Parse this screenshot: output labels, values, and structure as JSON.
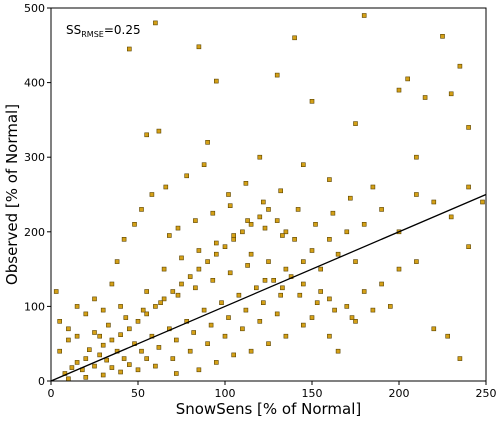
{
  "chart_data": {
    "type": "scatter",
    "title": "",
    "xlabel": "SnowSens [% of Normal]",
    "ylabel": "Observed [% of Normal]",
    "xlim": [
      0,
      250
    ],
    "ylim": [
      0,
      500
    ],
    "xticks": [
      "0",
      "50",
      "100",
      "150",
      "200",
      "250"
    ],
    "yticks": [
      "0",
      "100",
      "200",
      "300",
      "400",
      "500"
    ],
    "grid": false,
    "legend": "none",
    "annotation": {
      "prefix": "SS",
      "subscript": "RMSE",
      "suffix": "=0.25"
    },
    "marker_color": "#d4a017",
    "marker_edge_color": "#5a4300",
    "regression_line": {
      "x": [
        0,
        250
      ],
      "y": [
        0,
        250
      ],
      "color": "#000000"
    },
    "series": [
      {
        "values": [
          [
            8,
            10
          ],
          [
            12,
            18
          ],
          [
            15,
            25
          ],
          [
            18,
            15
          ],
          [
            20,
            30
          ],
          [
            22,
            42
          ],
          [
            25,
            20
          ],
          [
            28,
            35
          ],
          [
            30,
            48
          ],
          [
            32,
            28
          ],
          [
            35,
            55
          ],
          [
            38,
            40
          ],
          [
            40,
            62
          ],
          [
            42,
            30
          ],
          [
            45,
            70
          ],
          [
            48,
            50
          ],
          [
            50,
            80
          ],
          [
            52,
            40
          ],
          [
            55,
            90
          ],
          [
            58,
            60
          ],
          [
            60,
            100
          ],
          [
            62,
            45
          ],
          [
            65,
            110
          ],
          [
            68,
            70
          ],
          [
            70,
            120
          ],
          [
            72,
            55
          ],
          [
            75,
            130
          ],
          [
            78,
            80
          ],
          [
            80,
            140
          ],
          [
            82,
            65
          ],
          [
            85,
            150
          ],
          [
            88,
            95
          ],
          [
            90,
            160
          ],
          [
            92,
            75
          ],
          [
            95,
            170
          ],
          [
            98,
            105
          ],
          [
            100,
            180
          ],
          [
            102,
            85
          ],
          [
            105,
            190
          ],
          [
            108,
            115
          ],
          [
            110,
            200
          ],
          [
            112,
            95
          ],
          [
            115,
            210
          ],
          [
            118,
            125
          ],
          [
            120,
            220
          ],
          [
            122,
            105
          ],
          [
            125,
            230
          ],
          [
            128,
            135
          ],
          [
            130,
            215
          ],
          [
            132,
            115
          ],
          [
            135,
            200
          ],
          [
            138,
            140
          ],
          [
            140,
            190
          ],
          [
            145,
            160
          ],
          [
            150,
            175
          ],
          [
            155,
            150
          ],
          [
            160,
            190
          ],
          [
            165,
            170
          ],
          [
            170,
            200
          ],
          [
            175,
            160
          ],
          [
            180,
            210
          ],
          [
            190,
            230
          ],
          [
            200,
            200
          ],
          [
            210,
            250
          ],
          [
            220,
            240
          ],
          [
            230,
            220
          ],
          [
            240,
            260
          ],
          [
            248,
            240
          ],
          [
            45,
            445
          ],
          [
            60,
            480
          ],
          [
            85,
            448
          ],
          [
            140,
            460
          ],
          [
            180,
            490
          ],
          [
            225,
            462
          ],
          [
            235,
            422
          ],
          [
            240,
            340
          ],
          [
            130,
            410
          ],
          [
            95,
            402
          ],
          [
            150,
            375
          ],
          [
            175,
            345
          ],
          [
            200,
            390
          ],
          [
            205,
            405
          ],
          [
            215,
            380
          ],
          [
            230,
            385
          ],
          [
            55,
            330
          ],
          [
            62,
            335
          ],
          [
            90,
            320
          ],
          [
            120,
            300
          ],
          [
            145,
            290
          ],
          [
            160,
            270
          ],
          [
            185,
            260
          ],
          [
            210,
            300
          ],
          [
            3,
            120
          ],
          [
            5,
            80
          ],
          [
            10,
            70
          ],
          [
            15,
            100
          ],
          [
            20,
            90
          ],
          [
            25,
            110
          ],
          [
            30,
            95
          ],
          [
            35,
            130
          ],
          [
            5,
            40
          ],
          [
            10,
            55
          ],
          [
            15,
            60
          ],
          [
            25,
            65
          ],
          [
            40,
            100
          ],
          [
            55,
            120
          ],
          [
            65,
            150
          ],
          [
            75,
            165
          ],
          [
            85,
            175
          ],
          [
            95,
            185
          ],
          [
            105,
            195
          ],
          [
            115,
            170
          ],
          [
            125,
            160
          ],
          [
            135,
            150
          ],
          [
            145,
            130
          ],
          [
            155,
            120
          ],
          [
            160,
            110
          ],
          [
            170,
            100
          ],
          [
            175,
            80
          ],
          [
            185,
            95
          ],
          [
            195,
            100
          ],
          [
            220,
            70
          ],
          [
            235,
            30
          ],
          [
            228,
            60
          ],
          [
            60,
            20
          ],
          [
            70,
            30
          ],
          [
            80,
            40
          ],
          [
            90,
            50
          ],
          [
            100,
            60
          ],
          [
            110,
            70
          ],
          [
            120,
            80
          ],
          [
            130,
            90
          ],
          [
            72,
            10
          ],
          [
            85,
            15
          ],
          [
            95,
            25
          ],
          [
            105,
            35
          ],
          [
            115,
            40
          ],
          [
            125,
            50
          ],
          [
            135,
            60
          ],
          [
            145,
            75
          ],
          [
            150,
            85
          ],
          [
            160,
            60
          ],
          [
            165,
            40
          ],
          [
            180,
            120
          ],
          [
            190,
            130
          ],
          [
            200,
            150
          ],
          [
            210,
            160
          ],
          [
            240,
            180
          ],
          [
            20,
            5
          ],
          [
            30,
            8
          ],
          [
            40,
            12
          ],
          [
            50,
            15
          ],
          [
            10,
            3
          ],
          [
            35,
            18
          ],
          [
            45,
            22
          ],
          [
            55,
            30
          ],
          [
            38,
            160
          ],
          [
            48,
            210
          ],
          [
            42,
            190
          ],
          [
            52,
            230
          ],
          [
            58,
            250
          ],
          [
            66,
            260
          ],
          [
            78,
            275
          ],
          [
            88,
            290
          ],
          [
            102,
            250
          ],
          [
            112,
            265
          ],
          [
            122,
            240
          ],
          [
            132,
            255
          ],
          [
            142,
            230
          ],
          [
            152,
            210
          ],
          [
            162,
            225
          ],
          [
            172,
            245
          ],
          [
            68,
            195
          ],
          [
            73,
            205
          ],
          [
            83,
            215
          ],
          [
            93,
            225
          ],
          [
            103,
            235
          ],
          [
            113,
            215
          ],
          [
            123,
            205
          ],
          [
            133,
            195
          ],
          [
            28,
            60
          ],
          [
            33,
            75
          ],
          [
            43,
            85
          ],
          [
            53,
            95
          ],
          [
            63,
            105
          ],
          [
            73,
            115
          ],
          [
            83,
            125
          ],
          [
            93,
            135
          ],
          [
            103,
            145
          ],
          [
            113,
            155
          ],
          [
            123,
            135
          ],
          [
            133,
            125
          ],
          [
            143,
            115
          ],
          [
            153,
            105
          ],
          [
            163,
            95
          ],
          [
            173,
            85
          ]
        ]
      }
    ]
  }
}
